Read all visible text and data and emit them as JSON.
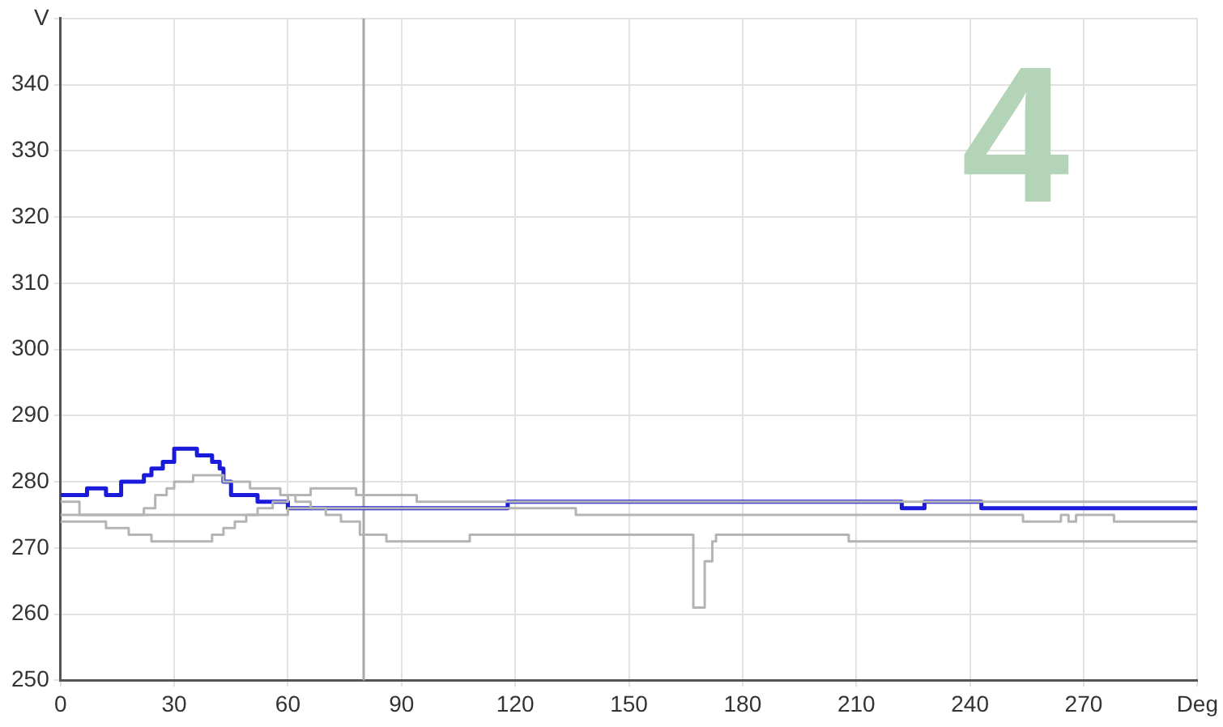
{
  "chart_data": {
    "type": "step",
    "annotations": [
      "4"
    ],
    "xlim": [
      0,
      300
    ],
    "ylim": [
      250,
      350
    ],
    "xticks": [
      0,
      30,
      60,
      90,
      120,
      150,
      180,
      210,
      240,
      270,
      {
        "value": 300,
        "label": "Deg"
      }
    ],
    "yticks": [
      250,
      260,
      270,
      280,
      290,
      300,
      310,
      320,
      330,
      340,
      {
        "value": 350,
        "label": "V"
      }
    ],
    "grid": true,
    "legend": false,
    "marker": "none",
    "line_style": "solid",
    "ref_lines": [
      {
        "axis": "x",
        "value": 80,
        "label": null,
        "color": "#a8a8a8"
      }
    ],
    "series": [
      {
        "color": "#b4b4b4",
        "x": [
          0,
          22,
          25,
          28,
          30,
          35,
          43,
          50,
          58,
          62,
          66,
          70,
          74,
          79,
          86,
          108,
          165,
          167,
          170,
          172,
          173,
          208,
          300
        ],
        "values": [
          275,
          276,
          278,
          279,
          280,
          281,
          280,
          279,
          278,
          277,
          276,
          275,
          274,
          272,
          271,
          272,
          272,
          261,
          268,
          271,
          272,
          271,
          271
        ]
      },
      {
        "color": "#b4b4b4",
        "x": [
          0,
          12,
          18,
          24,
          40,
          43,
          46,
          49,
          52,
          56,
          60,
          66,
          78,
          94,
          300
        ],
        "values": [
          274,
          273,
          272,
          271,
          272,
          273,
          274,
          275,
          276,
          277,
          278,
          279,
          278,
          277,
          277
        ]
      },
      {
        "color": "#b4b4b4",
        "x": [
          0,
          5,
          60,
          136,
          254,
          264,
          266,
          268,
          278,
          300
        ],
        "values": [
          277,
          275,
          276,
          275,
          274,
          275,
          274,
          275,
          274,
          274
        ]
      },
      {
        "color": "#1a1adb",
        "x": [
          0,
          7,
          12,
          16,
          22,
          24,
          27,
          30,
          36,
          40,
          42,
          43,
          45,
          52,
          60,
          118,
          222,
          228,
          243,
          300
        ],
        "values": [
          278,
          279,
          278,
          280,
          281,
          282,
          283,
          285,
          284,
          283,
          282,
          280,
          278,
          277,
          276,
          277,
          276,
          277,
          276,
          276
        ]
      }
    ]
  }
}
